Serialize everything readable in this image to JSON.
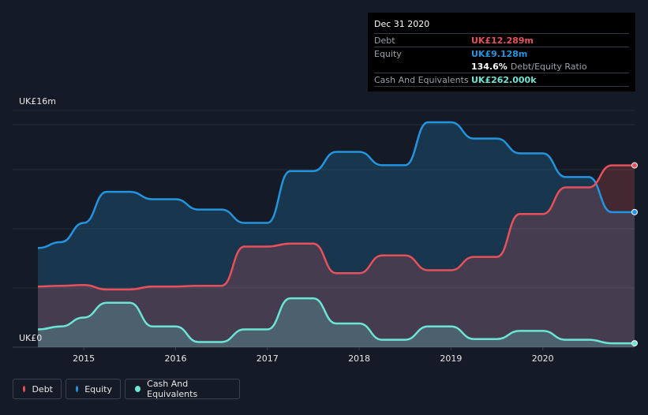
{
  "tooltip": {
    "date": "Dec 31 2020",
    "debt_label": "Debt",
    "debt_value": "UK£12.289m",
    "equity_label": "Equity",
    "equity_value": "UK£9.128m",
    "ratio_value": "134.6%",
    "ratio_label": "Debt/Equity Ratio",
    "cash_label": "Cash And Equivalents",
    "cash_value": "UK£262.000k"
  },
  "legend": {
    "debt": "Debt",
    "equity": "Equity",
    "cash": "Cash And Equivalents"
  },
  "colors": {
    "debt": "#e8505b",
    "equity": "#2394df",
    "cash": "#6de5d5",
    "background": "#151b26"
  },
  "chart_data": {
    "type": "area",
    "ylabel_top": "UK£16m",
    "ylabel_bottom": "UK£0",
    "ylim": [
      0,
      16
    ],
    "xlim": [
      2014.5,
      2021.0
    ],
    "x_ticks": [
      2015,
      2016,
      2017,
      2018,
      2019,
      2020
    ],
    "x_tick_labels": [
      "2015",
      "2016",
      "2017",
      "2018",
      "2019",
      "2020"
    ],
    "series": [
      {
        "name": "Equity",
        "key": "equity",
        "points": [
          [
            2014.5,
            6.7
          ],
          [
            2014.75,
            7.1
          ],
          [
            2015.0,
            8.4
          ],
          [
            2015.25,
            10.5
          ],
          [
            2015.5,
            10.5
          ],
          [
            2015.75,
            10.0
          ],
          [
            2016.0,
            10.0
          ],
          [
            2016.25,
            9.3
          ],
          [
            2016.5,
            9.3
          ],
          [
            2016.75,
            8.4
          ],
          [
            2017.0,
            8.4
          ],
          [
            2017.25,
            11.9
          ],
          [
            2017.5,
            11.9
          ],
          [
            2017.75,
            13.2
          ],
          [
            2018.0,
            13.2
          ],
          [
            2018.25,
            12.3
          ],
          [
            2018.5,
            12.3
          ],
          [
            2018.75,
            15.2
          ],
          [
            2019.0,
            15.2
          ],
          [
            2019.25,
            14.1
          ],
          [
            2019.5,
            14.1
          ],
          [
            2019.75,
            13.1
          ],
          [
            2020.0,
            13.1
          ],
          [
            2020.25,
            11.5
          ],
          [
            2020.5,
            11.5
          ],
          [
            2020.75,
            9.128
          ],
          [
            2021.0,
            9.128
          ]
        ]
      },
      {
        "name": "Debt",
        "key": "debt",
        "points": [
          [
            2014.5,
            4.1
          ],
          [
            2014.75,
            4.15
          ],
          [
            2015.0,
            4.2
          ],
          [
            2015.25,
            3.9
          ],
          [
            2015.5,
            3.9
          ],
          [
            2015.75,
            4.1
          ],
          [
            2016.0,
            4.1
          ],
          [
            2016.25,
            4.15
          ],
          [
            2016.5,
            4.15
          ],
          [
            2016.75,
            6.8
          ],
          [
            2017.0,
            6.8
          ],
          [
            2017.25,
            7.0
          ],
          [
            2017.5,
            7.0
          ],
          [
            2017.75,
            5.0
          ],
          [
            2018.0,
            5.0
          ],
          [
            2018.25,
            6.2
          ],
          [
            2018.5,
            6.2
          ],
          [
            2018.75,
            5.2
          ],
          [
            2019.0,
            5.2
          ],
          [
            2019.25,
            6.1
          ],
          [
            2019.5,
            6.1
          ],
          [
            2019.75,
            9.0
          ],
          [
            2020.0,
            9.0
          ],
          [
            2020.25,
            10.8
          ],
          [
            2020.5,
            10.8
          ],
          [
            2020.75,
            12.289
          ],
          [
            2021.0,
            12.289
          ]
        ]
      },
      {
        "name": "Cash And Equivalents",
        "key": "cash",
        "points": [
          [
            2014.5,
            1.2
          ],
          [
            2014.75,
            1.4
          ],
          [
            2015.0,
            2.0
          ],
          [
            2015.25,
            3.0
          ],
          [
            2015.5,
            3.0
          ],
          [
            2015.75,
            1.4
          ],
          [
            2016.0,
            1.4
          ],
          [
            2016.25,
            0.35
          ],
          [
            2016.5,
            0.35
          ],
          [
            2016.75,
            1.2
          ],
          [
            2017.0,
            1.2
          ],
          [
            2017.25,
            3.3
          ],
          [
            2017.5,
            3.3
          ],
          [
            2017.75,
            1.6
          ],
          [
            2018.0,
            1.6
          ],
          [
            2018.25,
            0.5
          ],
          [
            2018.5,
            0.5
          ],
          [
            2018.75,
            1.4
          ],
          [
            2019.0,
            1.4
          ],
          [
            2019.25,
            0.55
          ],
          [
            2019.5,
            0.55
          ],
          [
            2019.75,
            1.1
          ],
          [
            2020.0,
            1.1
          ],
          [
            2020.25,
            0.5
          ],
          [
            2020.5,
            0.5
          ],
          [
            2020.75,
            0.262
          ],
          [
            2021.0,
            0.262
          ]
        ]
      }
    ]
  }
}
